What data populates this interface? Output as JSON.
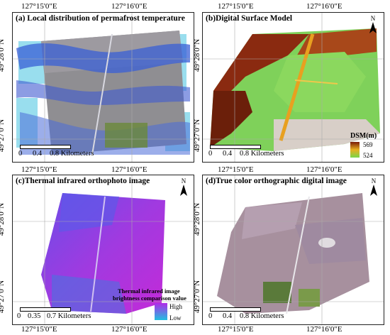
{
  "panels": {
    "a": {
      "title": "(a) Local distribution of permafrost temperature",
      "scale": {
        "zero": "0",
        "mid": "0.4",
        "end": "0.8 Kilometers"
      }
    },
    "b": {
      "title": "(b)Digital Surface Model",
      "scale": {
        "zero": "0",
        "mid": "0.4",
        "end": "0.8 Kilometers"
      },
      "legend": {
        "title": "DSM(m)",
        "max": "569",
        "min": "524"
      }
    },
    "c": {
      "title": "(c)Thermal infrared orthophoto image",
      "scale": {
        "zero": "0",
        "mid": "0.35",
        "end": "0.7 Kilometers"
      },
      "legend": {
        "title_line1": "Thermal infrared image",
        "title_line2": "brightness comparison value",
        "high": "High",
        "low": "Low"
      }
    },
    "d": {
      "title": "(d)True color orthographic digital image",
      "scale": {
        "zero": "0",
        "mid": "0.4",
        "end": "0.8 Kilometers"
      }
    }
  },
  "coords": {
    "lon1": "127°15'0\"E",
    "lon2": "127°16'0\"E",
    "lat1": "49°28'0\"N",
    "lat2": "49°27'0\"N"
  },
  "north_label": "N",
  "colors": {
    "dsm_high": "#7a1a08",
    "dsm_mid": "#e8b020",
    "dsm_low": "#7ad64a",
    "tir_high": "#b02ae8",
    "tir_low": "#20c0e0"
  }
}
